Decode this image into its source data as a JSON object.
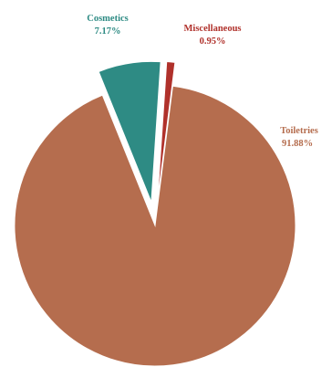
{
  "chart_data": {
    "type": "pie",
    "title": "",
    "categories": [
      "Cosmetics",
      "Miscellaneous",
      "Toiletries"
    ],
    "values": [
      7.17,
      0.95,
      91.88
    ],
    "labels": [
      {
        "name": "Cosmetics",
        "value_text": "7.17%"
      },
      {
        "name": "Miscellaneous",
        "value_text": "0.95%"
      },
      {
        "name": "Toiletries",
        "value_text": "91.88%"
      }
    ],
    "colors": [
      "#2e8b84",
      "#b0312b",
      "#b56d4e"
    ],
    "legend": "none",
    "exploded": true
  }
}
